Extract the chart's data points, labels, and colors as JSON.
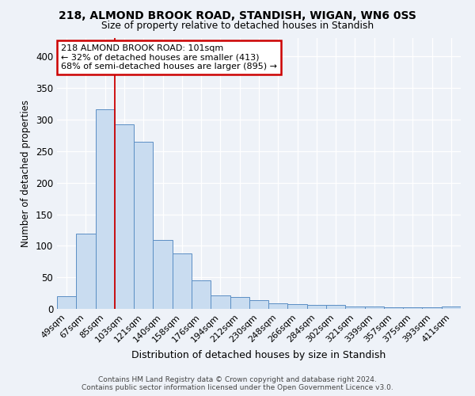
{
  "title1": "218, ALMOND BROOK ROAD, STANDISH, WIGAN, WN6 0SS",
  "title2": "Size of property relative to detached houses in Standish",
  "xlabel": "Distribution of detached houses by size in Standish",
  "ylabel": "Number of detached properties",
  "categories": [
    "49sqm",
    "67sqm",
    "85sqm",
    "103sqm",
    "121sqm",
    "140sqm",
    "158sqm",
    "176sqm",
    "194sqm",
    "212sqm",
    "230sqm",
    "248sqm",
    "266sqm",
    "284sqm",
    "302sqm",
    "321sqm",
    "339sqm",
    "357sqm",
    "375sqm",
    "393sqm",
    "411sqm"
  ],
  "values": [
    20,
    119,
    317,
    293,
    265,
    109,
    88,
    45,
    21,
    19,
    14,
    9,
    7,
    6,
    6,
    4,
    4,
    3,
    3,
    2,
    4
  ],
  "bar_color": "#c9dcf0",
  "bar_edge_color": "#5b8ec4",
  "property_line_x": 3.0,
  "annotation_text1": "218 ALMOND BROOK ROAD: 101sqm",
  "annotation_text2": "← 32% of detached houses are smaller (413)",
  "annotation_text3": "68% of semi-detached houses are larger (895) →",
  "annotation_box_color": "#ffffff",
  "annotation_box_edge": "#cc0000",
  "property_line_color": "#cc0000",
  "footer1": "Contains HM Land Registry data © Crown copyright and database right 2024.",
  "footer2": "Contains public sector information licensed under the Open Government Licence v3.0.",
  "ylim": [
    0,
    430
  ],
  "yticks": [
    0,
    50,
    100,
    150,
    200,
    250,
    300,
    350,
    400
  ],
  "background_color": "#eef2f8",
  "grid_color": "#ffffff"
}
